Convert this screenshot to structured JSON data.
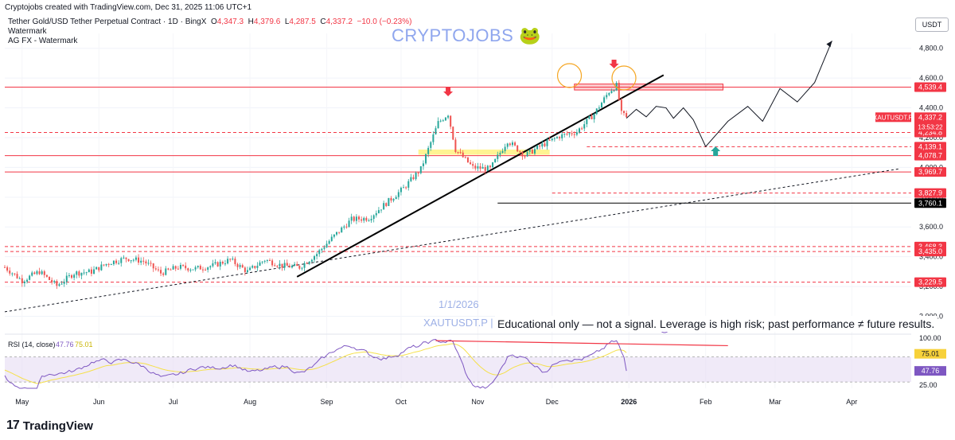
{
  "header": {
    "credit": "Cryptojobs created with TradingView.com, Dec 31, 2025 11:06 UTC+1",
    "symbol": "Tether Gold/USD Tether Perpetual Contract · 1D · BingX",
    "ohlc": {
      "o_label": "O",
      "o": "4,347.3",
      "h_label": "H",
      "h": "4,379.6",
      "l_label": "L",
      "l": "4,287.5",
      "c_label": "C",
      "c": "4,337.2",
      "change": "−10.0 (−0.23%)"
    },
    "indicator1": "Watermark",
    "indicator2": "AG FX - Watermark"
  },
  "brand": {
    "text": "CRYPTOJOBS",
    "emoji": "🐸"
  },
  "watermark": {
    "date": "1/1/2026",
    "symbol": "XAUTUSDT.P | B"
  },
  "disclaimer": "Educational only — not a signal. Leverage is high risk; past performance ≠ future results.",
  "currency_label": "USDT",
  "footer": {
    "logo_text": "TradingView"
  },
  "colors": {
    "up": "#26a69a",
    "down": "#ef5350",
    "level": "#f23645",
    "rsi": "#7e57c2",
    "rsi_ma": "#f5e04a",
    "trend": "#000000",
    "band": "#e6dcf3"
  },
  "chart_data": {
    "type": "candlestick",
    "symbol": "XAUTUSDT.P",
    "timeframe": "1D",
    "x_labels": [
      "May",
      "Jun",
      "Jul",
      "Aug",
      "Sep",
      "Oct",
      "Nov",
      "Dec",
      "2026",
      "Feb",
      "Mar",
      "Apr"
    ],
    "y_ticks": [
      "4,800.0",
      "4,600.0",
      "4,400.0",
      "4,200.0",
      "4,000.0",
      "3,800.0",
      "3,600.0",
      "3,400.0",
      "3,200.0",
      "3,000.0"
    ],
    "y_ticks_values": [
      4800,
      4600,
      4400,
      4200,
      4000,
      3800,
      3600,
      3400,
      3200,
      3000
    ],
    "ylim": [
      2960,
      4900
    ],
    "last_price": {
      "symbol": "XAUTUSDT.P",
      "price": "4,337.2",
      "countdown": "13:53:22"
    },
    "levels": [
      {
        "price": "4,539.4",
        "value": 4539.4,
        "style": "solid",
        "color": "#f23645"
      },
      {
        "price": "4,234.8",
        "value": 4234.8,
        "style": "dashed",
        "color": "#f23645"
      },
      {
        "price": "4,139.1",
        "value": 4139.1,
        "style": "dashed",
        "color": "#f23645"
      },
      {
        "price": "4,078.7",
        "value": 4078.7,
        "style": "solid",
        "color": "#f23645"
      },
      {
        "price": "3,969.7",
        "value": 3969.7,
        "style": "solid",
        "color": "#f23645"
      },
      {
        "price": "3,827.9",
        "value": 3827.9,
        "style": "dashed",
        "color": "#f23645"
      },
      {
        "price": "3,760.1",
        "value": 3760.1,
        "style": "solid",
        "color": "#000000"
      },
      {
        "price": "3,468.3",
        "value": 3468.3,
        "style": "dashed",
        "color": "#f23645"
      },
      {
        "price": "3,435.0",
        "value": 3435.0,
        "style": "dashed",
        "color": "#f23645"
      },
      {
        "price": "3,229.5",
        "value": 3229.5,
        "style": "dashed",
        "color": "#f23645"
      }
    ],
    "close_path": [
      [
        "2025-04-24",
        3330
      ],
      [
        "2025-05-01",
        3240
      ],
      [
        "2025-05-08",
        3300
      ],
      [
        "2025-05-15",
        3205
      ],
      [
        "2025-05-22",
        3290
      ],
      [
        "2025-05-29",
        3300
      ],
      [
        "2025-06-05",
        3360
      ],
      [
        "2025-06-12",
        3390
      ],
      [
        "2025-06-19",
        3370
      ],
      [
        "2025-06-26",
        3290
      ],
      [
        "2025-07-03",
        3330
      ],
      [
        "2025-07-10",
        3320
      ],
      [
        "2025-07-17",
        3340
      ],
      [
        "2025-07-24",
        3380
      ],
      [
        "2025-07-31",
        3300
      ],
      [
        "2025-08-07",
        3380
      ],
      [
        "2025-08-14",
        3340
      ],
      [
        "2025-08-21",
        3330
      ],
      [
        "2025-08-28",
        3420
      ],
      [
        "2025-09-04",
        3540
      ],
      [
        "2025-09-11",
        3650
      ],
      [
        "2025-09-18",
        3660
      ],
      [
        "2025-09-25",
        3760
      ],
      [
        "2025-10-02",
        3860
      ],
      [
        "2025-10-09",
        3990
      ],
      [
        "2025-10-16",
        4300
      ],
      [
        "2025-10-20",
        4360
      ],
      [
        "2025-10-23",
        4120
      ],
      [
        "2025-10-30",
        4000
      ],
      [
        "2025-11-06",
        3990
      ],
      [
        "2025-11-13",
        4180
      ],
      [
        "2025-11-20",
        4080
      ],
      [
        "2025-11-27",
        4150
      ],
      [
        "2025-12-04",
        4210
      ],
      [
        "2025-12-11",
        4240
      ],
      [
        "2025-12-18",
        4360
      ],
      [
        "2025-12-24",
        4510
      ],
      [
        "2025-12-27",
        4550
      ],
      [
        "2025-12-29",
        4360
      ],
      [
        "2025-12-31",
        4337.2
      ]
    ],
    "rsi": {
      "title": "RSI (14, close)",
      "value": "47.76",
      "ma_value": "75.01",
      "ticks": [
        "100.00",
        "75.01",
        "47.76",
        "25.00"
      ],
      "ticks_values": [
        100,
        75.01,
        47.76,
        25
      ],
      "band": [
        30,
        70
      ]
    },
    "annotations": {
      "trendline_main": [
        [
          "2025-08-20",
          3265
        ],
        [
          "2026-01-15",
          4620
        ]
      ],
      "trendline_long": [
        [
          "2025-04-24",
          3030
        ],
        [
          "2026-04-20",
          3990
        ]
      ],
      "down_arrows": [
        "2025-10-20",
        "2025-12-26"
      ],
      "up_arrow": "2026-02-05",
      "circles": [
        "2025-12-08",
        "2025-12-30"
      ],
      "projection": [
        [
          "2025-12-31",
          4330
        ],
        [
          "2026-01-04",
          4390
        ],
        [
          "2026-01-08",
          4340
        ],
        [
          "2026-01-12",
          4410
        ],
        [
          "2026-01-16",
          4400
        ],
        [
          "2026-01-19",
          4330
        ],
        [
          "2026-01-23",
          4400
        ],
        [
          "2026-01-27",
          4320
        ],
        [
          "2026-02-01",
          4140
        ],
        [
          "2026-02-10",
          4310
        ],
        [
          "2026-02-18",
          4410
        ],
        [
          "2026-02-24",
          4310
        ],
        [
          "2026-03-03",
          4530
        ],
        [
          "2026-03-10",
          4440
        ],
        [
          "2026-03-17",
          4570
        ],
        [
          "2026-03-24",
          4850
        ]
      ],
      "rsi_divergence": [
        [
          "2025-10-15",
          96
        ],
        [
          "2026-02-10",
          88
        ]
      ],
      "zone_red": [
        [
          "2025-12-10",
          4560
        ],
        [
          "2026-02-08",
          4520
        ]
      ],
      "zone_yellow": [
        [
          "2025-10-08",
          4120
        ],
        [
          "2025-11-30",
          4085
        ]
      ]
    }
  }
}
